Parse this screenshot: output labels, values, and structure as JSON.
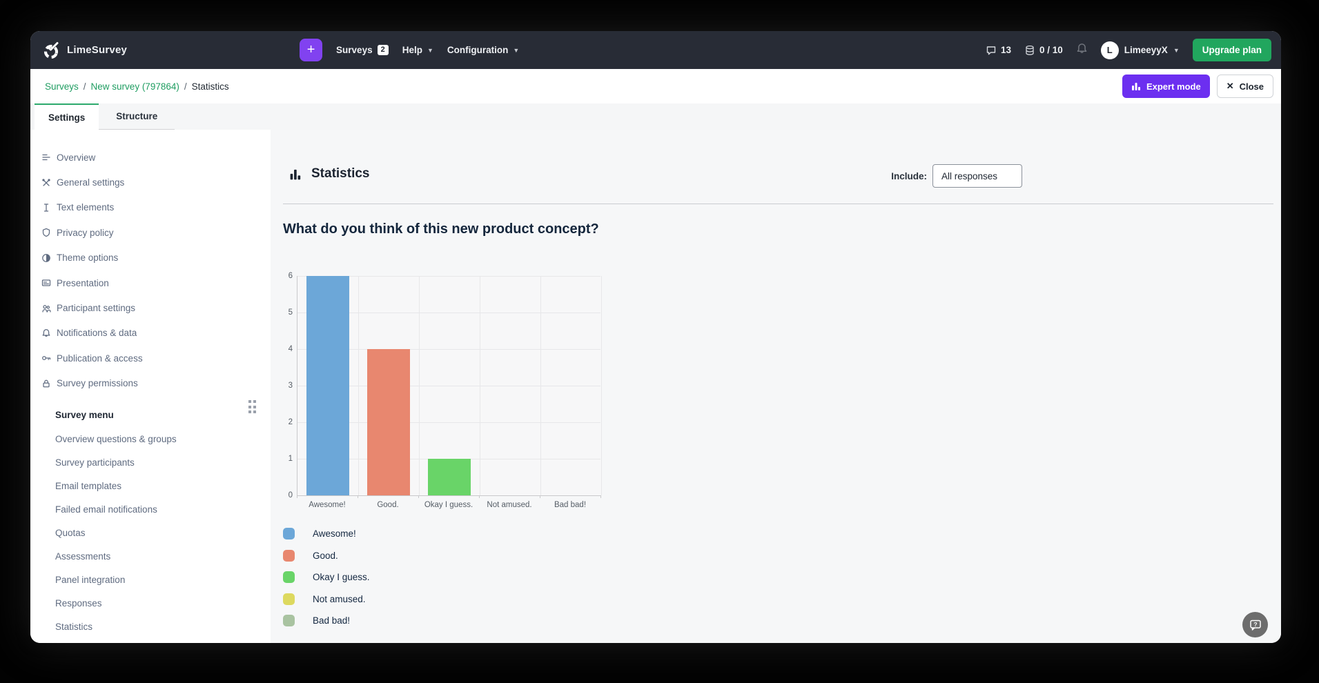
{
  "navbar": {
    "brand": "LimeSurvey",
    "plus_label": "+",
    "surveys_label": "Surveys",
    "surveys_count": "2",
    "help_label": "Help",
    "configuration_label": "Configuration",
    "messages_count": "13",
    "storage_usage": "0 / 10",
    "user_initial": "L",
    "user_name": "LimeeyyX",
    "upgrade_label": "Upgrade plan",
    "accent_purple": "#8142f0",
    "accent_green": "#21a65e"
  },
  "breadcrumb": {
    "items": [
      {
        "label": "Surveys"
      },
      {
        "label": "New survey (797864)"
      },
      {
        "label": "Statistics"
      }
    ],
    "separator": "/"
  },
  "header_actions": {
    "expert_mode_label": "Expert mode",
    "close_label": "Close",
    "close_glyph": "✕"
  },
  "tabs": [
    {
      "label": "Settings",
      "active": true
    },
    {
      "label": "Structure",
      "active": false
    }
  ],
  "sidebar": {
    "items": [
      {
        "label": "Overview",
        "icon": "list-icon"
      },
      {
        "label": "General settings",
        "icon": "tools-icon"
      },
      {
        "label": "Text elements",
        "icon": "text-icon"
      },
      {
        "label": "Privacy policy",
        "icon": "shield-icon"
      },
      {
        "label": "Theme options",
        "icon": "contrast-icon"
      },
      {
        "label": "Presentation",
        "icon": "card-icon"
      },
      {
        "label": "Participant settings",
        "icon": "people-icon"
      },
      {
        "label": "Notifications & data",
        "icon": "bell-icon"
      },
      {
        "label": "Publication & access",
        "icon": "key-icon"
      },
      {
        "label": "Survey permissions",
        "icon": "lock-icon"
      }
    ],
    "menu_header": "Survey menu",
    "menu_items": [
      "Overview questions & groups",
      "Survey participants",
      "Email templates",
      "Failed email notifications",
      "Quotas",
      "Assessments",
      "Panel integration",
      "Responses",
      "Statistics"
    ]
  },
  "main": {
    "title": "Statistics",
    "include_label": "Include:",
    "include_value": "All responses",
    "question_title": "What do you think of this new product concept?"
  },
  "chart_data": {
    "type": "bar",
    "title": "What do you think of this new product concept?",
    "categories": [
      "Awesome!",
      "Good.",
      "Okay I guess.",
      "Not amused.",
      "Bad bad!"
    ],
    "values": [
      6,
      4,
      1,
      0,
      0
    ],
    "colors": [
      "#6ca7d8",
      "#e8876f",
      "#69d468",
      "#ddd95f",
      "#a9c3a1"
    ],
    "xlabel": "",
    "ylabel": "",
    "ylim": [
      0,
      6
    ],
    "yticks": [
      0,
      1,
      2,
      3,
      4,
      5,
      6
    ],
    "grid": true,
    "legend_position": "bottom"
  },
  "help_button": {
    "tooltip": "?"
  }
}
